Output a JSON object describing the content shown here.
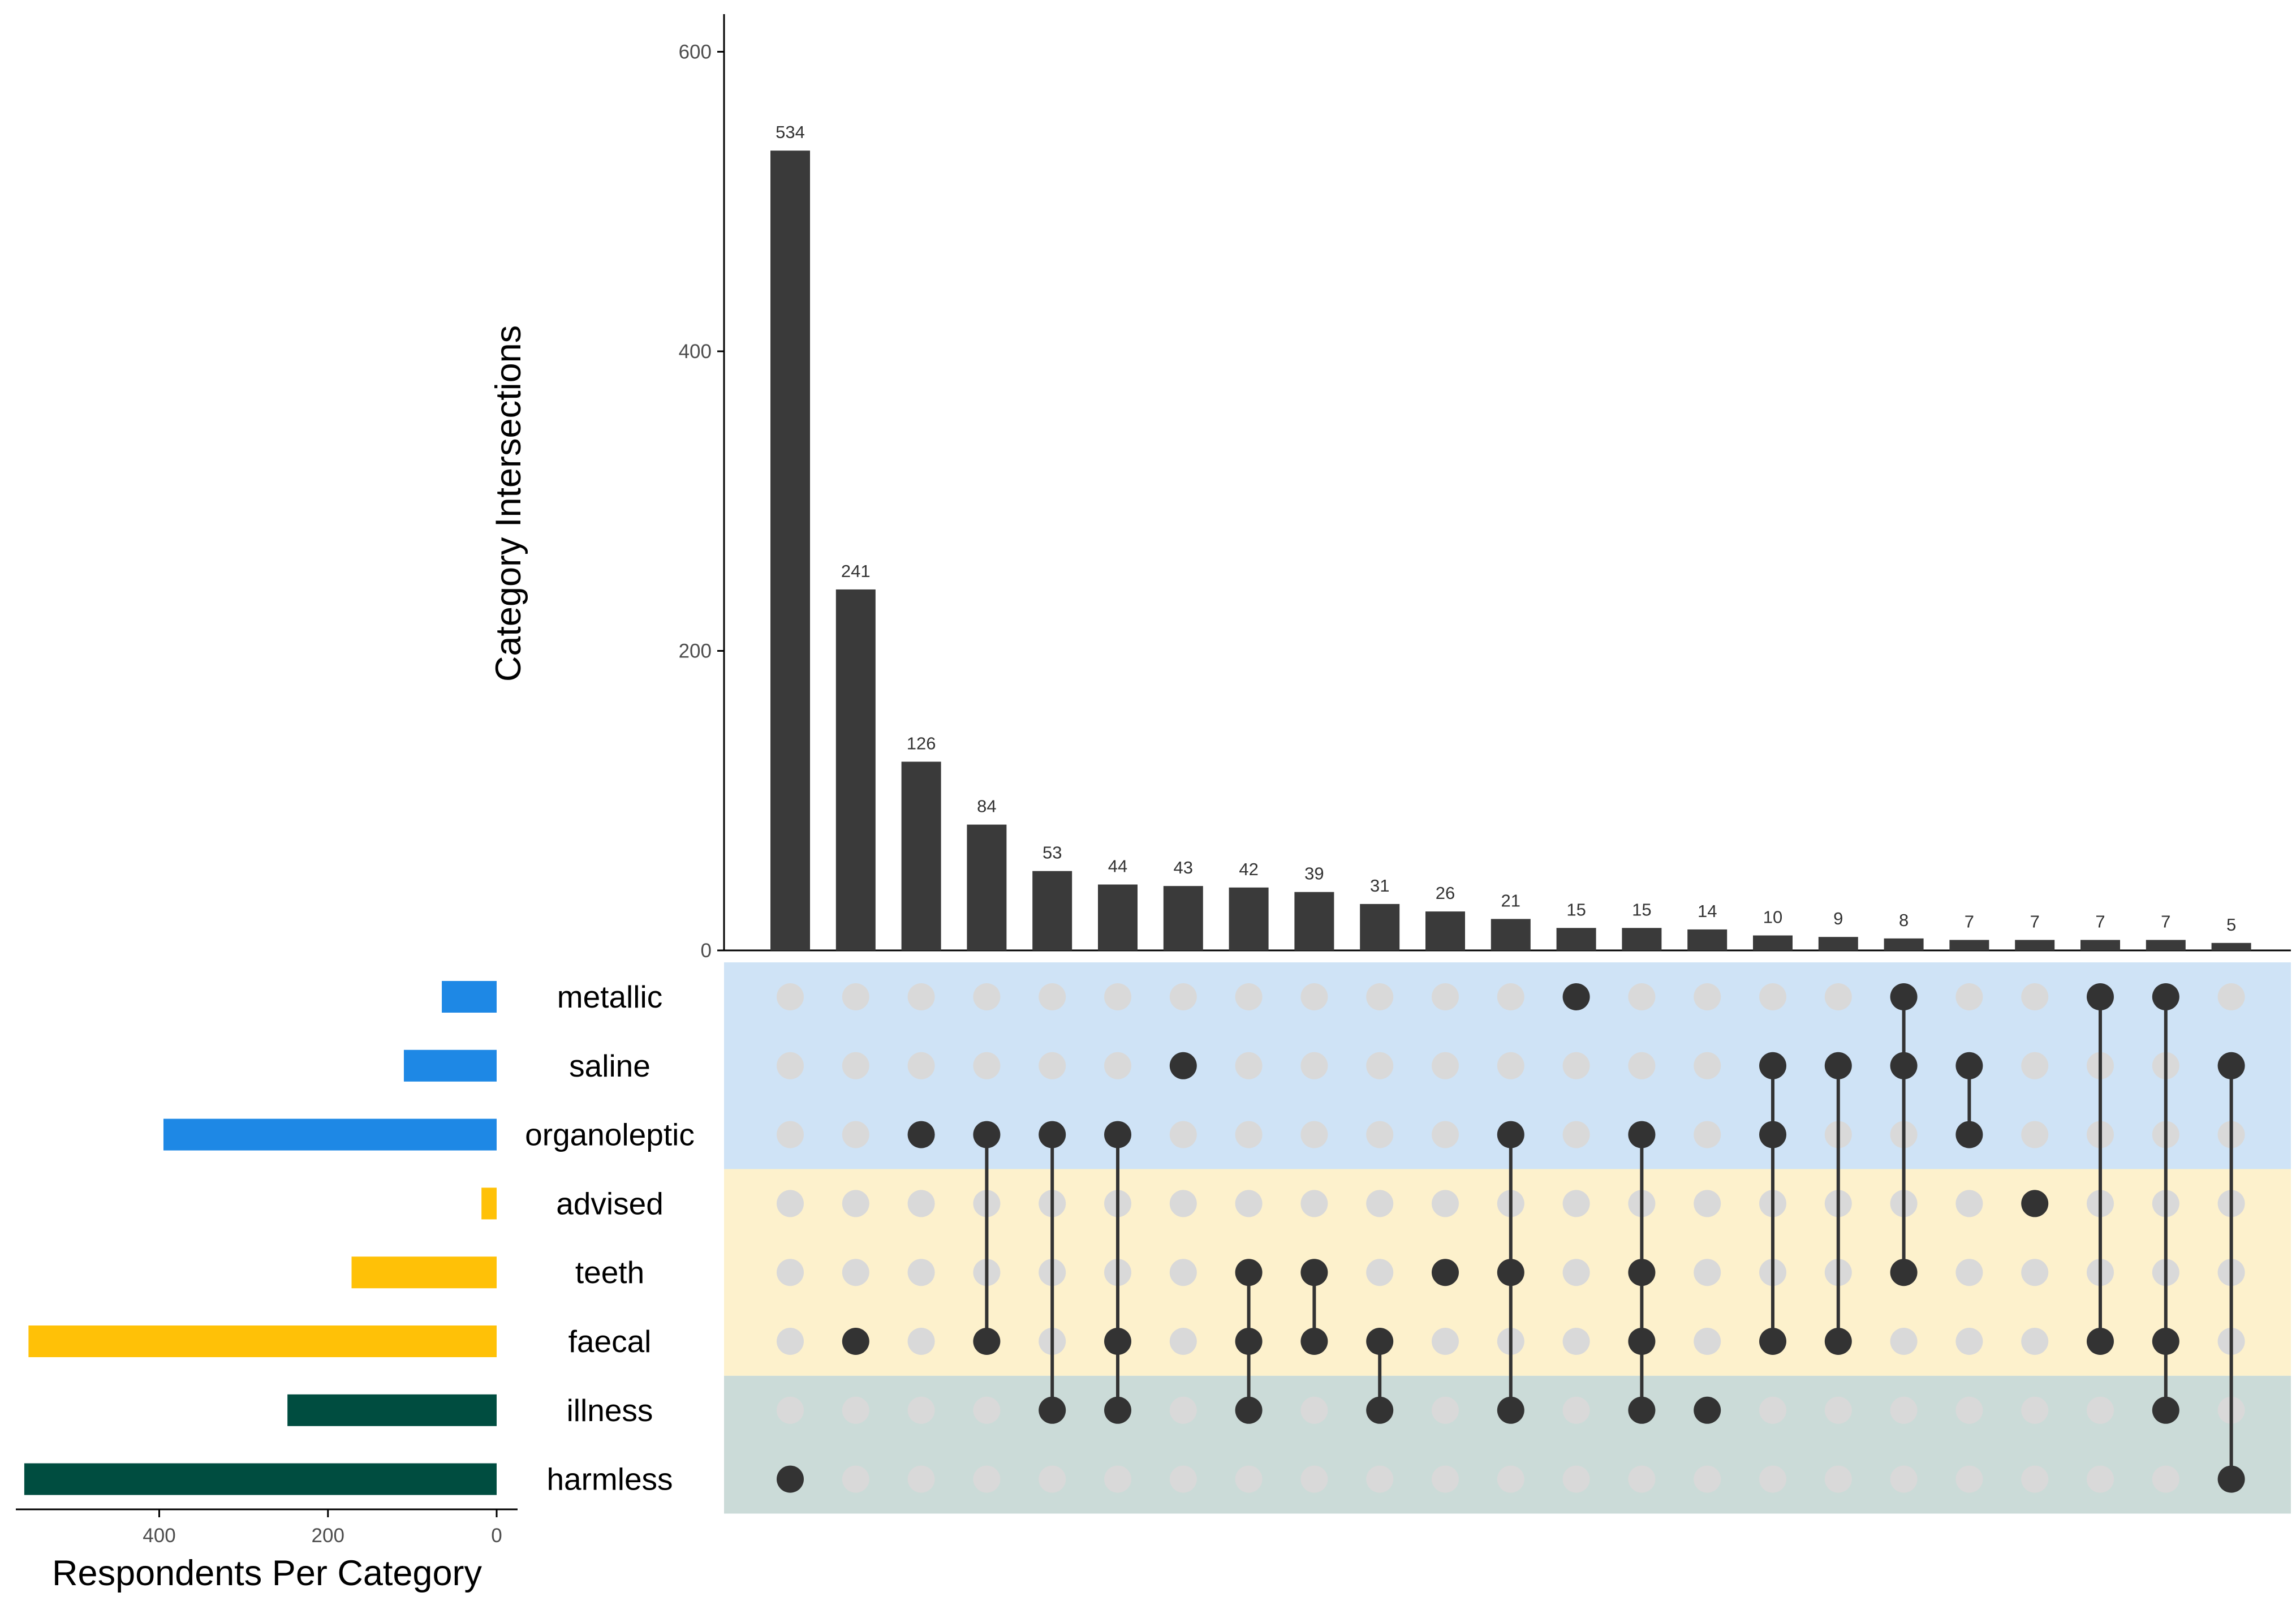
{
  "chart_data": {
    "type": "upset",
    "intersections_axis": {
      "title": "Category Intersections",
      "ylim": [
        0,
        610
      ],
      "ticks": [
        0,
        200,
        400,
        600
      ]
    },
    "set_size_axis": {
      "title": "Respondents Per Category",
      "xlim": [
        0,
        570
      ],
      "ticks": [
        400,
        200,
        0
      ]
    },
    "sets": [
      {
        "name": "metallic",
        "size": 65,
        "group": "blue"
      },
      {
        "name": "saline",
        "size": 110,
        "group": "blue"
      },
      {
        "name": "organoleptic",
        "size": 395,
        "group": "blue"
      },
      {
        "name": "advised",
        "size": 18,
        "group": "yellow"
      },
      {
        "name": "teeth",
        "size": 172,
        "group": "yellow"
      },
      {
        "name": "faecal",
        "size": 555,
        "group": "yellow"
      },
      {
        "name": "illness",
        "size": 248,
        "group": "green"
      },
      {
        "name": "harmless",
        "size": 560,
        "group": "green"
      }
    ],
    "intersections": [
      {
        "value": 534,
        "label": "534",
        "sets": [
          "harmless"
        ]
      },
      {
        "value": 241,
        "label": "241",
        "sets": [
          "faecal"
        ]
      },
      {
        "value": 126,
        "label": "126",
        "sets": [
          "organoleptic"
        ]
      },
      {
        "value": 84,
        "label": "84",
        "sets": [
          "organoleptic",
          "faecal"
        ]
      },
      {
        "value": 53,
        "label": "53",
        "sets": [
          "organoleptic",
          "illness"
        ]
      },
      {
        "value": 44,
        "label": "44",
        "sets": [
          "organoleptic",
          "faecal",
          "illness"
        ]
      },
      {
        "value": 43,
        "label": "43",
        "sets": [
          "saline"
        ]
      },
      {
        "value": 42,
        "label": "42",
        "sets": [
          "teeth",
          "faecal",
          "illness"
        ]
      },
      {
        "value": 39,
        "label": "39",
        "sets": [
          "teeth",
          "faecal"
        ]
      },
      {
        "value": 31,
        "label": "31",
        "sets": [
          "faecal",
          "illness"
        ]
      },
      {
        "value": 26,
        "label": "26",
        "sets": [
          "teeth"
        ]
      },
      {
        "value": 21,
        "label": "21",
        "sets": [
          "organoleptic",
          "teeth",
          "illness"
        ]
      },
      {
        "value": 15,
        "label": "15",
        "sets": [
          "metallic"
        ]
      },
      {
        "value": 15,
        "label": "15",
        "sets": [
          "organoleptic",
          "teeth",
          "faecal",
          "illness"
        ]
      },
      {
        "value": 14,
        "label": "14",
        "sets": [
          "illness"
        ]
      },
      {
        "value": 10,
        "label": "10",
        "sets": [
          "saline",
          "organoleptic",
          "faecal"
        ]
      },
      {
        "value": 9,
        "label": "9",
        "sets": [
          "saline",
          "faecal"
        ]
      },
      {
        "value": 8,
        "label": "8",
        "sets": [
          "metallic",
          "saline",
          "teeth"
        ]
      },
      {
        "value": 7,
        "label": "7",
        "sets": [
          "saline",
          "organoleptic"
        ]
      },
      {
        "value": 7,
        "label": "7",
        "sets": [
          "advised"
        ]
      },
      {
        "value": 7,
        "label": "7",
        "sets": [
          "metallic",
          "faecal"
        ]
      },
      {
        "value": 7,
        "label": "7",
        "sets": [
          "metallic",
          "faecal",
          "illness"
        ]
      },
      {
        "value": 5,
        "label": "5",
        "sets": [
          "saline",
          "harmless"
        ]
      }
    ],
    "colors": {
      "blue_bar": "#1e88e5",
      "yellow_bar": "#ffc107",
      "green_bar": "#004d40",
      "blue_band": "#cfe3f6",
      "yellow_band": "#fdf1cc",
      "green_band": "#cbdbd8",
      "intersection_bar": "#3a3a3a",
      "active_dot": "#333333",
      "inactive_dot": "#d9d9d9"
    }
  }
}
